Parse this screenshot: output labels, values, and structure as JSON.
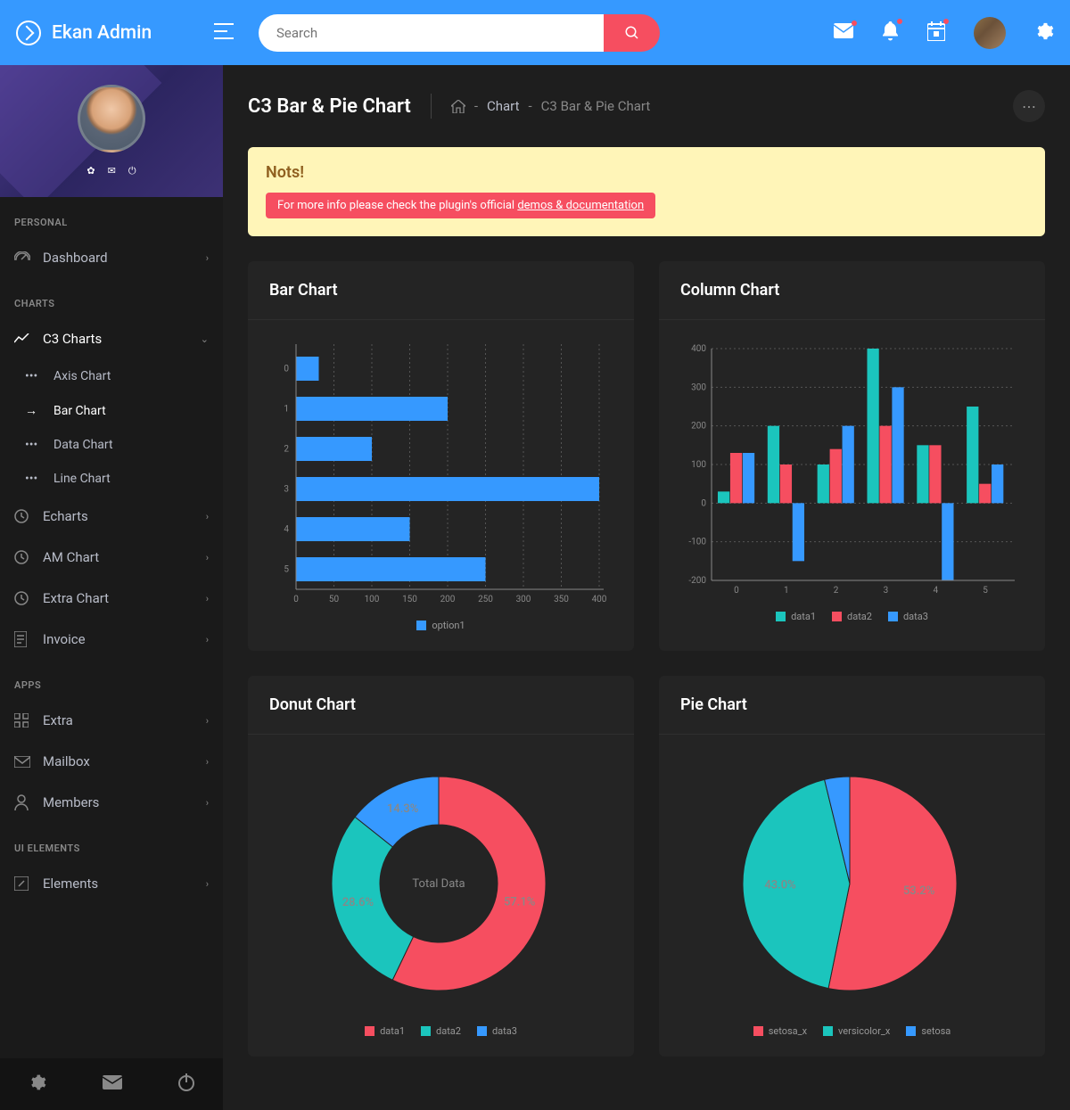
{
  "brand": "Ekan Admin",
  "search_placeholder": "Search",
  "page": {
    "title": "C3 Bar & Pie Chart"
  },
  "breadcrumb": {
    "l1": "Chart",
    "l2": "C3 Bar & Pie Chart"
  },
  "notice": {
    "title": "Nots!",
    "text_prefix": "For more info please check the plugin's official ",
    "link": "demos & documentation"
  },
  "sidebar": {
    "sections": {
      "personal": "PERSONAL",
      "charts": "CHARTS",
      "apps": "APPS",
      "ui": "UI ELEMENTS"
    },
    "items": {
      "dashboard": "Dashboard",
      "c3": "C3 Charts",
      "axis": "Axis Chart",
      "bar": "Bar Chart",
      "data": "Data Chart",
      "line": "Line Chart",
      "echarts": "Echarts",
      "amchart": "AM Chart",
      "extrachart": "Extra Chart",
      "invoice": "Invoice",
      "extra": "Extra",
      "mailbox": "Mailbox",
      "members": "Members",
      "elements": "Elements"
    }
  },
  "charts": {
    "bar": {
      "title": "Bar Chart",
      "type": "bar-horizontal",
      "categories": [
        0,
        1,
        2,
        3,
        4,
        5
      ],
      "values": [
        30,
        200,
        100,
        400,
        150,
        250
      ],
      "xticks": [
        0,
        50,
        100,
        150,
        200,
        250,
        300,
        350,
        400
      ],
      "xlim": [
        0,
        400
      ],
      "bar_color": "#3699ff",
      "grid_color": "#555",
      "text_color": "#888",
      "legend": [
        {
          "label": "option1",
          "color": "#3699ff"
        }
      ]
    },
    "column": {
      "title": "Column Chart",
      "type": "bar-grouped",
      "categories": [
        0,
        1,
        2,
        3,
        4,
        5
      ],
      "series": [
        {
          "name": "data1",
          "color": "#1bc5bd",
          "values": [
            30,
            200,
            100,
            400,
            150,
            250
          ]
        },
        {
          "name": "data2",
          "color": "#f64e60",
          "values": [
            130,
            100,
            140,
            200,
            150,
            50
          ]
        },
        {
          "name": "data3",
          "color": "#3699ff",
          "values": [
            130,
            -150,
            200,
            300,
            -200,
            100
          ]
        }
      ],
      "yticks": [
        -200,
        -100,
        0,
        100,
        200,
        300,
        400
      ],
      "ylim": [
        -200,
        400
      ],
      "grid_color": "#555",
      "text_color": "#888"
    },
    "donut": {
      "title": "Donut Chart",
      "type": "donut",
      "center_label": "Total Data",
      "slices": [
        {
          "name": "data1",
          "color": "#f64e60",
          "pct": 57.1
        },
        {
          "name": "data2",
          "color": "#1bc5bd",
          "pct": 28.6
        },
        {
          "name": "data3",
          "color": "#3699ff",
          "pct": 14.3
        }
      ],
      "inner_radius": 0.55
    },
    "pie": {
      "title": "Pie Chart",
      "type": "pie",
      "slices": [
        {
          "name": "setosa_x",
          "color": "#f64e60",
          "pct": 53.2
        },
        {
          "name": "versicolor_x",
          "color": "#1bc5bd",
          "pct": 43.0
        },
        {
          "name": "setosa",
          "color": "#3699ff",
          "pct": 3.8
        }
      ]
    }
  }
}
